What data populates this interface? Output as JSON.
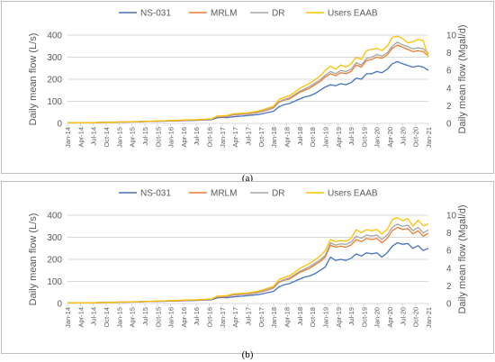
{
  "colors": {
    "ns031": "#4472C4",
    "mrlm": "#ED7D31",
    "dr": "#A5A5A5",
    "users": "#FFC000",
    "grid": "#D9D9D9"
  },
  "captions": {
    "a": "(a)",
    "b": "(b)"
  },
  "chart_data": [
    {
      "type": "line",
      "panel": "a",
      "xlabel": "",
      "ylabel": "Daily mean flow (L/s)",
      "y2label": "Daily mean flow (Mgal/d)",
      "ylim": [
        0,
        400
      ],
      "y2lim": [
        0,
        10
      ],
      "yticks": [
        0,
        100,
        200,
        300,
        400
      ],
      "y2ticks": [
        0,
        2,
        4,
        6,
        8,
        10
      ],
      "legend_position": "top",
      "grid": true,
      "x_tick_labels": [
        "Jan-14",
        "Apr-14",
        "Jul-14",
        "Oct-14",
        "Jan-15",
        "Apr-15",
        "Jul-15",
        "Oct-15",
        "Jan-16",
        "Apr-16",
        "Jul-16",
        "Oct-16",
        "Jan-17",
        "Apr-17",
        "Jul-17",
        "Oct-17",
        "Jan-18",
        "Apr-18",
        "Jul-18",
        "Oct-18",
        "Jan-19",
        "Apr-19",
        "Jul-19",
        "Oct-19",
        "Jan-20",
        "Apr-20",
        "Jul-20",
        "Oct-20",
        "Jan-21"
      ],
      "series": [
        {
          "name": "NS-031",
          "color": "#4472C4",
          "values": [
            3,
            3,
            3,
            3,
            3,
            3,
            4,
            4,
            5,
            5,
            6,
            6,
            6,
            7,
            7,
            8,
            9,
            9,
            10,
            10,
            12,
            11,
            12,
            13,
            13,
            14,
            15,
            16,
            17,
            25,
            27,
            26,
            30,
            32,
            33,
            36,
            38,
            40,
            45,
            50,
            55,
            75,
            85,
            90,
            100,
            110,
            120,
            125,
            135,
            150,
            165,
            175,
            170,
            180,
            175,
            185,
            205,
            200,
            225,
            225,
            235,
            230,
            245,
            270,
            280,
            270,
            262,
            255,
            260,
            255,
            240
          ]
        },
        {
          "name": "MRLM",
          "color": "#ED7D31",
          "values": [
            3,
            3,
            3,
            3,
            3,
            3,
            4,
            4,
            5,
            5,
            6,
            6,
            7,
            7,
            8,
            9,
            9,
            10,
            11,
            11,
            13,
            12,
            13,
            14,
            15,
            16,
            16,
            18,
            19,
            30,
            30,
            32,
            38,
            40,
            41,
            43,
            46,
            50,
            55,
            62,
            70,
            95,
            105,
            110,
            125,
            140,
            150,
            160,
            175,
            190,
            210,
            225,
            215,
            230,
            225,
            235,
            265,
            255,
            285,
            290,
            300,
            295,
            310,
            340,
            355,
            345,
            335,
            325,
            330,
            325,
            305
          ]
        },
        {
          "name": "DR",
          "color": "#A5A5A5",
          "values": [
            3,
            3,
            3,
            3,
            3,
            3,
            4,
            4,
            5,
            5,
            6,
            6,
            7,
            7,
            8,
            9,
            10,
            10,
            11,
            12,
            13,
            13,
            14,
            15,
            15,
            16,
            17,
            18,
            20,
            31,
            32,
            34,
            40,
            42,
            43,
            45,
            48,
            52,
            57,
            65,
            73,
            98,
            108,
            115,
            130,
            145,
            155,
            168,
            182,
            198,
            218,
            235,
            225,
            240,
            235,
            245,
            275,
            265,
            295,
            300,
            312,
            305,
            320,
            350,
            368,
            356,
            348,
            338,
            342,
            338,
            318
          ]
        },
        {
          "name": "Users EAAB",
          "color": "#FFC000",
          "values": [
            3,
            3,
            3,
            3,
            3,
            3,
            4,
            4,
            5,
            5,
            6,
            6,
            7,
            8,
            8,
            9,
            10,
            11,
            12,
            12,
            14,
            13,
            15,
            16,
            16,
            17,
            18,
            19,
            21,
            33,
            34,
            36,
            43,
            45,
            46,
            48,
            52,
            56,
            62,
            70,
            78,
            108,
            118,
            125,
            140,
            158,
            170,
            182,
            198,
            215,
            240,
            260,
            245,
            265,
            255,
            270,
            300,
            290,
            330,
            335,
            340,
            330,
            350,
            390,
            395,
            385,
            365,
            370,
            380,
            375,
            300
          ]
        }
      ]
    },
    {
      "type": "line",
      "panel": "b",
      "xlabel": "",
      "ylabel": "Daily mean flow (L/s)",
      "y2label": "Daily mean flow (Mgal/d)",
      "ylim": [
        0,
        400
      ],
      "y2lim": [
        0,
        10
      ],
      "yticks": [
        0,
        100,
        200,
        300,
        400
      ],
      "y2ticks": [
        0,
        2,
        4,
        6,
        8,
        10
      ],
      "legend_position": "top",
      "grid": true,
      "x_tick_labels": [
        "Jan-14",
        "Apr-14",
        "Jul-14",
        "Oct-14",
        "Jan-15",
        "Apr-15",
        "Jul-15",
        "Oct-15",
        "Jan-16",
        "Apr-16",
        "Jul-16",
        "Oct-16",
        "Jan-17",
        "Apr-17",
        "Jul-17",
        "Oct-17",
        "Jan-18",
        "Apr-18",
        "Jul-18",
        "Oct-18",
        "Jan-19",
        "Apr-19",
        "Jul-19",
        "Oct-19",
        "Jan-20",
        "Apr-20",
        "Jul-20",
        "Oct-20",
        "Jan-21"
      ],
      "series": [
        {
          "name": "NS-031",
          "color": "#4472C4",
          "values": [
            3,
            3,
            3,
            3,
            3,
            3,
            4,
            4,
            5,
            5,
            6,
            6,
            6,
            7,
            7,
            8,
            9,
            9,
            10,
            10,
            12,
            11,
            12,
            13,
            13,
            14,
            15,
            16,
            17,
            25,
            27,
            26,
            30,
            32,
            33,
            36,
            38,
            40,
            45,
            50,
            55,
            75,
            85,
            90,
            100,
            110,
            120,
            125,
            135,
            150,
            165,
            210,
            195,
            200,
            195,
            205,
            225,
            215,
            230,
            225,
            230,
            210,
            230,
            260,
            275,
            268,
            272,
            250,
            262,
            240,
            250
          ]
        },
        {
          "name": "MRLM",
          "color": "#ED7D31",
          "values": [
            3,
            3,
            3,
            3,
            3,
            3,
            4,
            4,
            5,
            5,
            6,
            6,
            7,
            7,
            8,
            9,
            9,
            10,
            11,
            11,
            13,
            12,
            13,
            14,
            15,
            16,
            16,
            18,
            19,
            30,
            30,
            32,
            38,
            40,
            41,
            43,
            46,
            50,
            55,
            62,
            70,
            95,
            105,
            110,
            125,
            140,
            150,
            160,
            175,
            190,
            210,
            265,
            255,
            260,
            255,
            265,
            290,
            280,
            295,
            290,
            295,
            275,
            295,
            330,
            345,
            335,
            340,
            315,
            330,
            305,
            318
          ]
        },
        {
          "name": "DR",
          "color": "#A5A5A5",
          "values": [
            3,
            3,
            3,
            3,
            3,
            3,
            4,
            4,
            5,
            5,
            6,
            6,
            7,
            7,
            8,
            9,
            10,
            10,
            11,
            12,
            13,
            13,
            14,
            15,
            15,
            16,
            17,
            18,
            20,
            31,
            32,
            34,
            40,
            42,
            43,
            45,
            48,
            52,
            57,
            65,
            73,
            98,
            108,
            115,
            130,
            145,
            155,
            168,
            182,
            198,
            218,
            275,
            265,
            270,
            268,
            278,
            305,
            295,
            310,
            305,
            310,
            290,
            310,
            345,
            360,
            350,
            355,
            330,
            345,
            320,
            333
          ]
        },
        {
          "name": "Users EAAB",
          "color": "#FFC000",
          "values": [
            3,
            3,
            3,
            3,
            3,
            3,
            4,
            4,
            5,
            5,
            6,
            6,
            7,
            8,
            8,
            9,
            10,
            11,
            12,
            12,
            14,
            13,
            15,
            16,
            16,
            17,
            18,
            19,
            21,
            33,
            34,
            36,
            43,
            45,
            46,
            48,
            52,
            56,
            62,
            70,
            78,
            108,
            118,
            125,
            140,
            158,
            170,
            182,
            198,
            215,
            240,
            290,
            280,
            285,
            282,
            295,
            335,
            320,
            335,
            330,
            335,
            315,
            335,
            380,
            390,
            375,
            385,
            350,
            378,
            352,
            360
          ]
        }
      ]
    }
  ]
}
